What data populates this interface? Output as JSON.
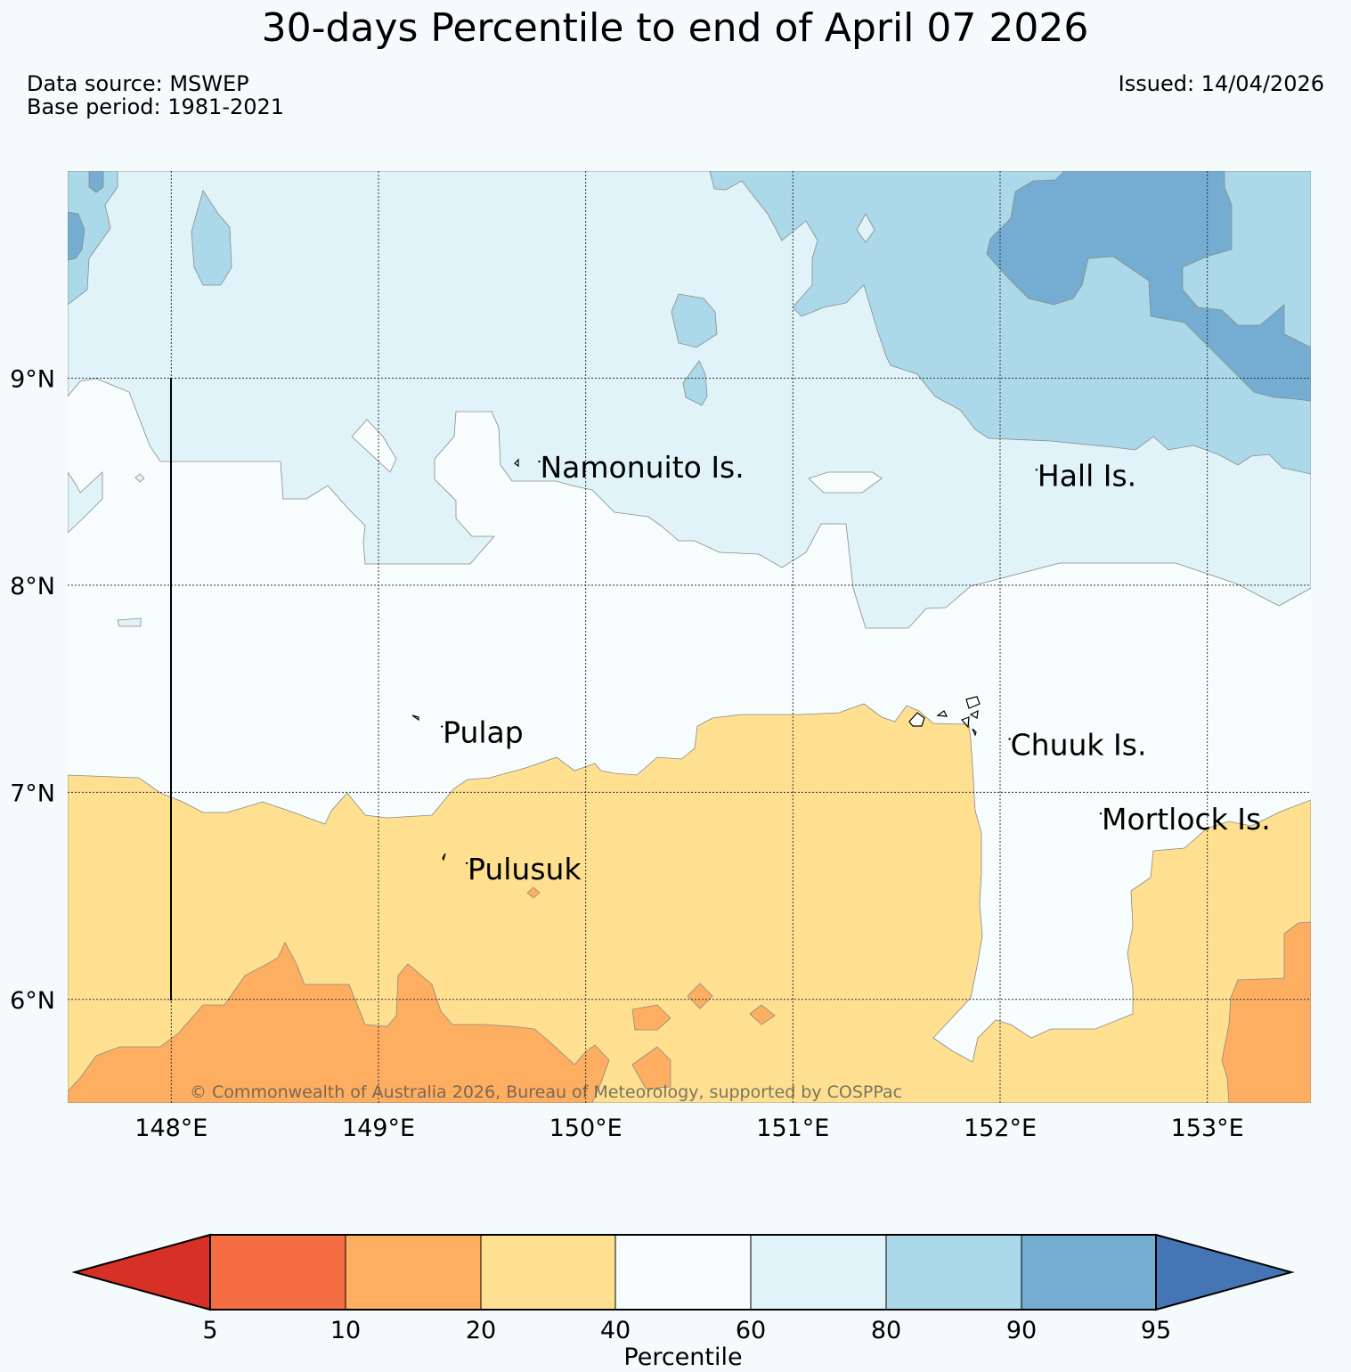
{
  "title": "30-days Percentile to end of April 07 2026",
  "meta": {
    "data_source": "Data source: MSWEP",
    "base_period": "Base period: 1981-2021",
    "issued": "Issued: 14/04/2026"
  },
  "map": {
    "lon_range": [
      147.5,
      153.5
    ],
    "lat_range": [
      5.5,
      10.0
    ],
    "lon_ticks": [
      {
        "value": 148,
        "label": "148°E"
      },
      {
        "value": 149,
        "label": "149°E"
      },
      {
        "value": 150,
        "label": "150°E"
      },
      {
        "value": 151,
        "label": "151°E"
      },
      {
        "value": 152,
        "label": "152°E"
      },
      {
        "value": 153,
        "label": "153°E"
      }
    ],
    "lat_ticks": [
      {
        "value": 9,
        "label": "9°N"
      },
      {
        "value": 8,
        "label": "8°N"
      },
      {
        "value": 7,
        "label": "7°N"
      },
      {
        "value": 6,
        "label": "6°N"
      }
    ],
    "place_labels": [
      {
        "name": "Namonuito Is.",
        "lon": 149.78,
        "lat": 8.52
      },
      {
        "name": "Hall Is.",
        "lon": 152.18,
        "lat": 8.48
      },
      {
        "name": "Pulap",
        "lon": 149.31,
        "lat": 7.24
      },
      {
        "name": "Chuuk Is.",
        "lon": 152.05,
        "lat": 7.18
      },
      {
        "name": "Mortlock Is.",
        "lon": 152.49,
        "lat": 6.82
      },
      {
        "name": "Pulusuk",
        "lon": 149.43,
        "lat": 6.58
      }
    ],
    "copyright": "© Commonwealth of Australia 2026, Bureau of Meteorology, supported by COSPPac"
  },
  "colorbar": {
    "label": "Percentile",
    "boundaries": [
      "5",
      "10",
      "20",
      "40",
      "60",
      "80",
      "90",
      "95"
    ],
    "colors": {
      "lt5": "#d73027",
      "p5_10": "#f46d43",
      "p10_20": "#fdae61",
      "p20_40": "#fee090",
      "p40_60": "#f7fcfd",
      "p60_80": "#e0f3f8",
      "p80_90": "#abd9e9",
      "p90_95": "#74add1",
      "gt95": "#4575b4"
    }
  }
}
